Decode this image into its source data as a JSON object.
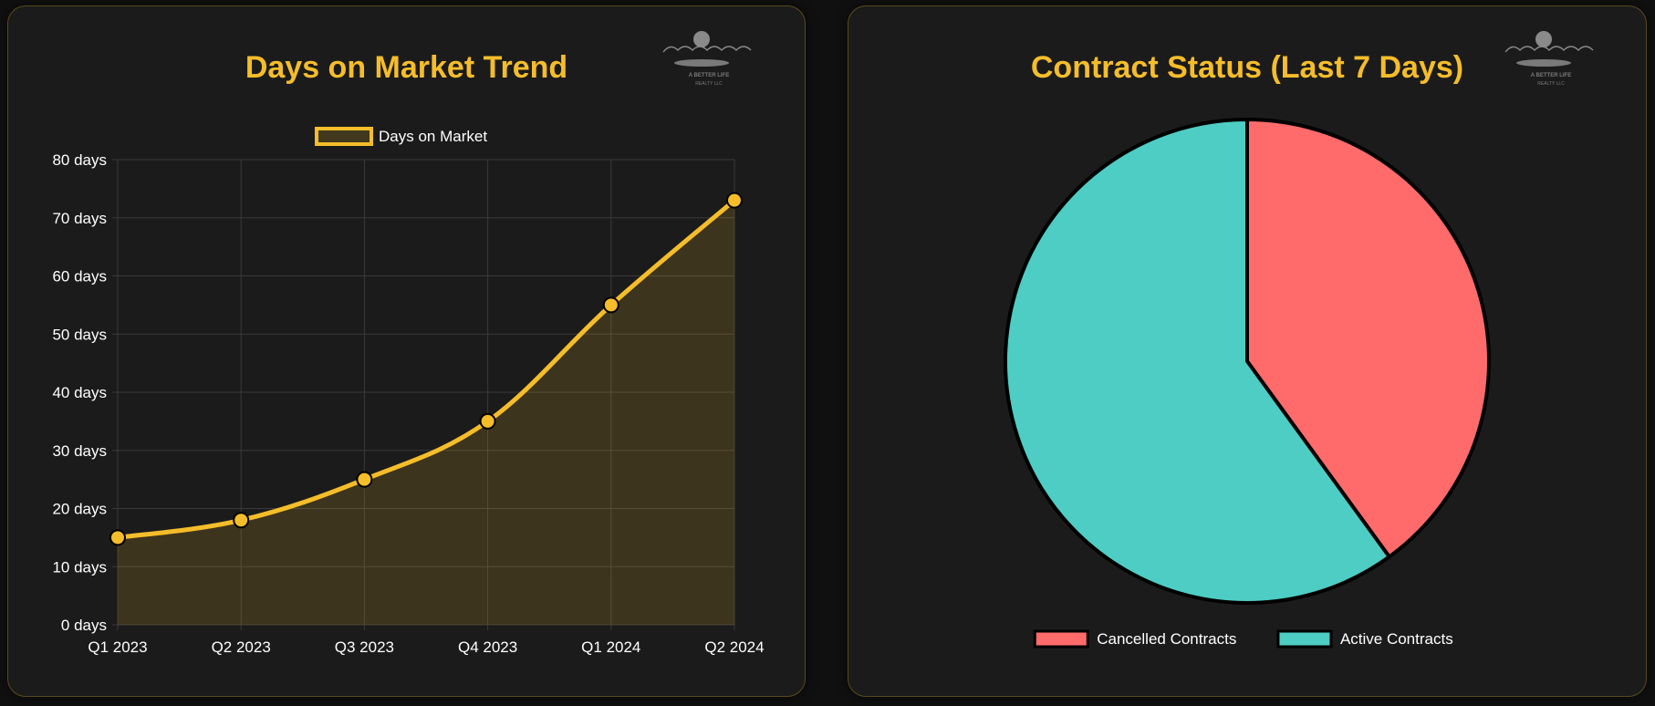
{
  "colors": {
    "title": "#f5bd2a",
    "line": "#f5bd2a",
    "area": "rgba(245,189,42,0.16)",
    "grid": "#3a3a3a",
    "tick_text": "#ffffff",
    "cancelled": "#ff6b6b",
    "active": "#4ecdc4",
    "slice_border": "#000000"
  },
  "logo": {
    "line1": "A BETTER LIFE",
    "line2": "REALTY LLC"
  },
  "chart_data": [
    {
      "type": "line",
      "title": "Days on Market Trend",
      "legend_position": "top",
      "categories": [
        "Q1 2023",
        "Q2 2023",
        "Q3 2023",
        "Q4 2023",
        "Q1 2024",
        "Q2 2024"
      ],
      "series": [
        {
          "name": "Days on Market",
          "values": [
            15,
            18,
            25,
            35,
            55,
            73
          ]
        }
      ],
      "ylim": [
        0,
        80
      ],
      "yticks": [
        0,
        10,
        20,
        30,
        40,
        50,
        60,
        70,
        80
      ],
      "ytick_suffix": " days",
      "grid": true,
      "fill": true
    },
    {
      "type": "pie",
      "title": "Contract Status (Last 7 Days)",
      "legend_position": "bottom",
      "labels": [
        "Cancelled Contracts",
        "Active Contracts"
      ],
      "values": [
        2,
        3
      ]
    }
  ]
}
